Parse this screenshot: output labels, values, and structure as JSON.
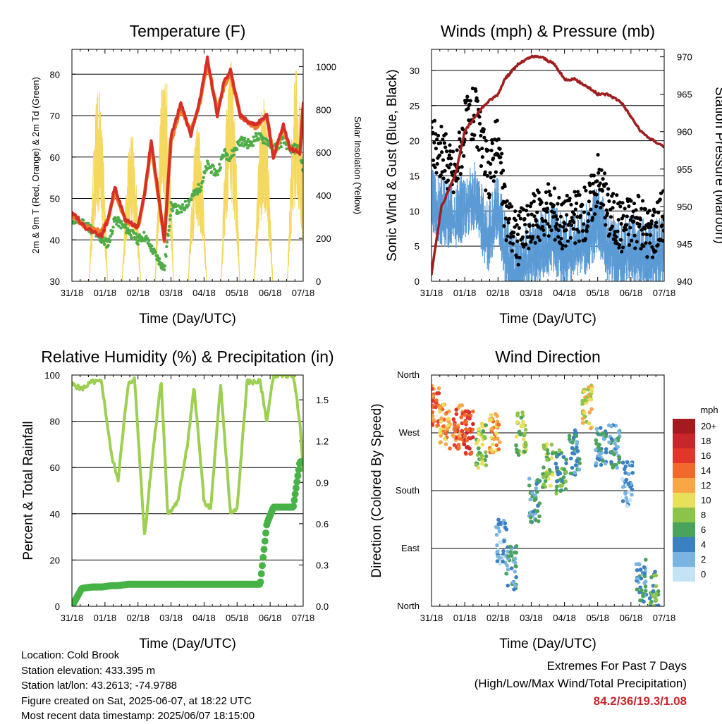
{
  "x_tick_labels": [
    "31/18",
    "01/18",
    "02/18",
    "03/18",
    "04/18",
    "05/18",
    "06/18",
    "07/18"
  ],
  "chart_data": [
    {
      "type": "line",
      "title": "Temperature (F)",
      "xlabel": "Time (Day/UTC)",
      "ylabel": "2m & 9m T (Red, Orange) & 2m Td (Green)",
      "y2label": "Solar Insolation (Yellow)",
      "ylim": [
        30,
        86
      ],
      "y2lim": [
        0,
        1080
      ],
      "yticks": [
        30,
        40,
        50,
        60,
        70,
        80
      ],
      "y2ticks": [
        0,
        200,
        400,
        600,
        800,
        1000
      ],
      "grid": true,
      "x_days": [
        0,
        0.4,
        0.9,
        1.1,
        1.3,
        1.6,
        2.0,
        2.2,
        2.4,
        2.8,
        3.0,
        3.3,
        3.6,
        3.9,
        4.1,
        4.4,
        4.6,
        4.8,
        5.1,
        5.4,
        5.6,
        5.9,
        6.1,
        6.4,
        6.6,
        6.9,
        7.0
      ],
      "series": [
        {
          "name": "2m T",
          "color": "#d62f27",
          "values": [
            47,
            43,
            41,
            45,
            53,
            45,
            43,
            51,
            64,
            40,
            65,
            73,
            65,
            75,
            84,
            70,
            78,
            81,
            70,
            68,
            68,
            70,
            60,
            68,
            62,
            61,
            73
          ]
        },
        {
          "name": "9m T",
          "color": "#f07c2a",
          "values": [
            46,
            43,
            42,
            45,
            52,
            45,
            43,
            51,
            63,
            40,
            64,
            72,
            66,
            74,
            83,
            71,
            77,
            80,
            70,
            68,
            67,
            70,
            60,
            67,
            62,
            61,
            72
          ]
        },
        {
          "name": "2m Td",
          "color": "#4fad48",
          "values": [
            45,
            44,
            40,
            39,
            45,
            43,
            40,
            41,
            38,
            33,
            48,
            47,
            50,
            53,
            58,
            56,
            61,
            60,
            64,
            63,
            65,
            64,
            62,
            64,
            62,
            62,
            56
          ]
        },
        {
          "name": "Solar",
          "color": "#f5d85e",
          "axis": "right",
          "peaks": [
            0.8,
            1.8,
            2.8,
            3.8,
            4.8,
            5.8,
            6.8
          ],
          "peak_values": [
            900,
            690,
            1010,
            730,
            1040,
            860,
            1000
          ]
        }
      ]
    },
    {
      "type": "line",
      "title": "Winds (mph) & Pressure (mb)",
      "xlabel": "Time (Day/UTC)",
      "ylabel": "Sonic Wind & Gust (Blue, Black)",
      "y2label": "Station Pressure (Maroon)",
      "ylim": [
        0,
        33
      ],
      "y2lim": [
        940,
        971
      ],
      "yticks": [
        0,
        5,
        10,
        15,
        20,
        25,
        30
      ],
      "y2ticks": [
        940,
        945,
        950,
        955,
        960,
        965,
        970
      ],
      "grid": true,
      "x_days": [
        0,
        0.3,
        0.7,
        1.0,
        1.3,
        1.7,
        2.0,
        2.2,
        2.6,
        3.0,
        3.3,
        3.7,
        4.0,
        4.3,
        4.7,
        5.0,
        5.3,
        5.7,
        6.0,
        6.3,
        6.6,
        7.0
      ],
      "series": [
        {
          "name": "Wind",
          "color": "#5b9bd5",
          "values": [
            12,
            11,
            10,
            12,
            13,
            7,
            12,
            6,
            2,
            5,
            6,
            7,
            5,
            6,
            7,
            10,
            6,
            5,
            6,
            5,
            4,
            6
          ]
        },
        {
          "name": "Gust",
          "color": "#000000",
          "values": [
            20,
            18,
            15,
            22,
            24,
            15,
            20,
            10,
            6,
            8,
            10,
            10,
            8,
            9,
            10,
            15,
            10,
            8,
            9,
            8,
            7,
            10
          ]
        },
        {
          "name": "Pressure",
          "color": "#a01e1f",
          "axis": "right",
          "values": [
            941,
            950,
            954,
            960,
            962,
            964,
            965,
            967,
            969,
            970,
            970,
            969,
            967,
            967,
            966,
            965,
            965,
            964,
            962,
            960,
            959,
            958
          ]
        }
      ]
    },
    {
      "type": "line",
      "title": "Relative Humidity (%) & Precipitation (in)",
      "xlabel": "Time (Day/UTC)",
      "ylabel": "Percent & Total Rainfall",
      "ylim": [
        0,
        100
      ],
      "y2lim": [
        0,
        1.68
      ],
      "yticks": [
        0,
        20,
        40,
        60,
        80,
        100
      ],
      "y2ticks": [
        0.0,
        0.3,
        0.6,
        0.9,
        1.2,
        1.5
      ],
      "grid": true,
      "x_days": [
        0,
        0.3,
        0.6,
        0.9,
        1.2,
        1.4,
        1.7,
        1.9,
        2.2,
        2.4,
        2.7,
        2.9,
        3.2,
        3.5,
        3.7,
        4.0,
        4.2,
        4.5,
        4.8,
        5.0,
        5.3,
        5.7,
        5.9,
        6.1,
        6.4,
        6.7,
        6.9,
        7.0
      ],
      "series": [
        {
          "name": "RH",
          "color": "#9ccf52",
          "values": [
            96,
            94,
            97,
            97,
            65,
            55,
            96,
            98,
            30,
            60,
            98,
            40,
            45,
            70,
            95,
            45,
            42,
            96,
            40,
            42,
            97,
            97,
            80,
            100,
            100,
            100,
            80,
            58
          ]
        },
        {
          "name": "Total Rain",
          "color": "#47b246",
          "axis": "right",
          "values": [
            0,
            0.13,
            0.14,
            0.14,
            0.15,
            0.15,
            0.16,
            0.16,
            0.16,
            0.16,
            0.16,
            0.16,
            0.16,
            0.16,
            0.16,
            0.16,
            0.16,
            0.16,
            0.16,
            0.16,
            0.16,
            0.16,
            0.6,
            0.72,
            0.72,
            0.72,
            1.05,
            1.05
          ]
        }
      ]
    },
    {
      "type": "scatter",
      "title": "Wind Direction",
      "xlabel": "Time (Day/UTC)",
      "ylabel": "Direction (Colored By Speed)",
      "y_categories": [
        "North",
        "East",
        "South",
        "West",
        "North"
      ],
      "ylim": [
        0,
        360
      ],
      "grid": true,
      "color_scale_label": "mph",
      "color_scale": [
        {
          "label": "20+",
          "color": "#a51a1e"
        },
        {
          "label": "18",
          "color": "#c8262b"
        },
        {
          "label": "16",
          "color": "#e2362b"
        },
        {
          "label": "14",
          "color": "#f26a2b"
        },
        {
          "label": "12",
          "color": "#f9a646"
        },
        {
          "label": "10",
          "color": "#e8df5a"
        },
        {
          "label": "8",
          "color": "#8cc44a"
        },
        {
          "label": "6",
          "color": "#4ba35b"
        },
        {
          "label": "4",
          "color": "#3b80c0"
        },
        {
          "label": "2",
          "color": "#7ab4e0"
        },
        {
          "label": "0",
          "color": "#c4e4f6"
        }
      ],
      "clusters": [
        {
          "x": 0.1,
          "dir": 310,
          "speed": 14
        },
        {
          "x": 0.4,
          "dir": 280,
          "speed": 12
        },
        {
          "x": 0.8,
          "dir": 280,
          "speed": 14
        },
        {
          "x": 1.1,
          "dir": 270,
          "speed": 16
        },
        {
          "x": 1.5,
          "dir": 250,
          "speed": 8
        },
        {
          "x": 1.9,
          "dir": 270,
          "speed": 12
        },
        {
          "x": 2.1,
          "dir": 100,
          "speed": 2
        },
        {
          "x": 2.4,
          "dir": 60,
          "speed": 4
        },
        {
          "x": 2.7,
          "dir": 270,
          "speed": 8
        },
        {
          "x": 3.1,
          "dir": 165,
          "speed": 4
        },
        {
          "x": 3.5,
          "dir": 220,
          "speed": 8
        },
        {
          "x": 3.9,
          "dir": 210,
          "speed": 6
        },
        {
          "x": 4.3,
          "dir": 240,
          "speed": 4
        },
        {
          "x": 4.7,
          "dir": 310,
          "speed": 10
        },
        {
          "x": 5.1,
          "dir": 250,
          "speed": 4
        },
        {
          "x": 5.5,
          "dir": 250,
          "speed": 4
        },
        {
          "x": 5.9,
          "dir": 190,
          "speed": 2
        },
        {
          "x": 6.3,
          "dir": 40,
          "speed": 4
        },
        {
          "x": 6.7,
          "dir": 20,
          "speed": 6
        }
      ]
    }
  ],
  "footer": {
    "location": "Location: Cold Brook",
    "elevation": "Station elevation: 433.395 m",
    "latlon": "Station lat/lon: 43.2613; -74.9788",
    "created": "Figure created on Sat, 2025-06-07, at 18:22 UTC",
    "timestamp": "Most recent data timestamp: 2025/06/07 18:15:00"
  },
  "extremes": {
    "line1": "Extremes For Past 7 Days",
    "line2": "(High/Low/Max Wind/Total Precipitation)",
    "value": "84.2/36/19.3/1.08"
  }
}
